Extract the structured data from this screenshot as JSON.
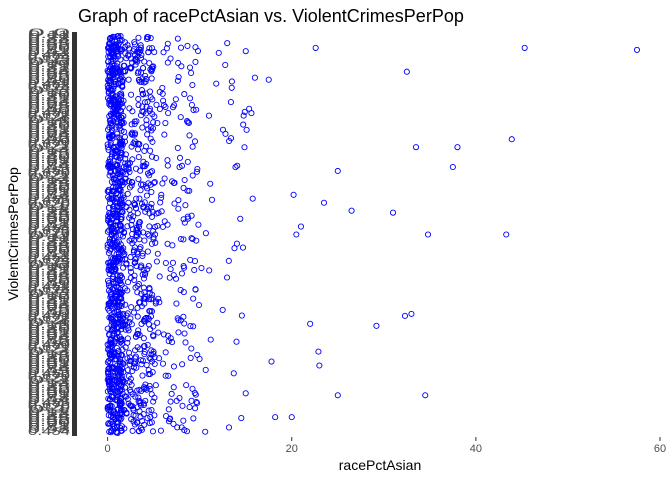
{
  "chart_data": {
    "type": "scatter",
    "title": "Graph of racePctAsian vs. ViolentCrimesPerPop",
    "xlabel": "racePctAsian",
    "ylabel": "ViolentCrimesPerPop",
    "xlim": [
      -3,
      60
    ],
    "x_ticks": [
      0,
      20,
      40,
      60
    ],
    "y_axis": "categorical (hundreds of overlapping factor-level labels, illegible)",
    "grid": false,
    "marker": "open circle",
    "point_color": "#0000ff",
    "outliers": [
      {
        "x": 57.5,
        "y": 0.965
      },
      {
        "x": 45.3,
        "y": 0.97
      },
      {
        "x": 22.6,
        "y": 0.97
      },
      {
        "x": 32.5,
        "y": 0.91
      },
      {
        "x": 16.0,
        "y": 0.895
      },
      {
        "x": 17.5,
        "y": 0.89
      },
      {
        "x": 11.8,
        "y": 0.88
      },
      {
        "x": 43.9,
        "y": 0.74
      },
      {
        "x": 38.0,
        "y": 0.72
      },
      {
        "x": 33.5,
        "y": 0.72
      },
      {
        "x": 37.5,
        "y": 0.67
      },
      {
        "x": 25.0,
        "y": 0.66
      },
      {
        "x": 20.2,
        "y": 0.6
      },
      {
        "x": 23.5,
        "y": 0.58
      },
      {
        "x": 26.5,
        "y": 0.56
      },
      {
        "x": 31.0,
        "y": 0.555
      },
      {
        "x": 34.8,
        "y": 0.5
      },
      {
        "x": 43.3,
        "y": 0.5
      },
      {
        "x": 21.0,
        "y": 0.52
      },
      {
        "x": 20.5,
        "y": 0.5
      },
      {
        "x": 33.0,
        "y": 0.3
      },
      {
        "x": 32.3,
        "y": 0.295
      },
      {
        "x": 29.2,
        "y": 0.27
      },
      {
        "x": 22.0,
        "y": 0.275
      },
      {
        "x": 22.9,
        "y": 0.205
      },
      {
        "x": 23.0,
        "y": 0.17
      },
      {
        "x": 17.8,
        "y": 0.18
      },
      {
        "x": 25.0,
        "y": 0.095
      },
      {
        "x": 34.5,
        "y": 0.095
      },
      {
        "x": 20.0,
        "y": 0.04
      },
      {
        "x": 18.2,
        "y": 0.04
      },
      {
        "x": 15.0,
        "y": 0.1
      },
      {
        "x": 14.0,
        "y": 0.23
      },
      {
        "x": 12.5,
        "y": 0.31
      }
    ],
    "dense_cluster": {
      "count": 1500,
      "x_range": [
        0,
        10
      ],
      "x_concentration": "heavy near 0–3, thinning to ~15",
      "y_range": [
        0,
        1
      ]
    }
  }
}
